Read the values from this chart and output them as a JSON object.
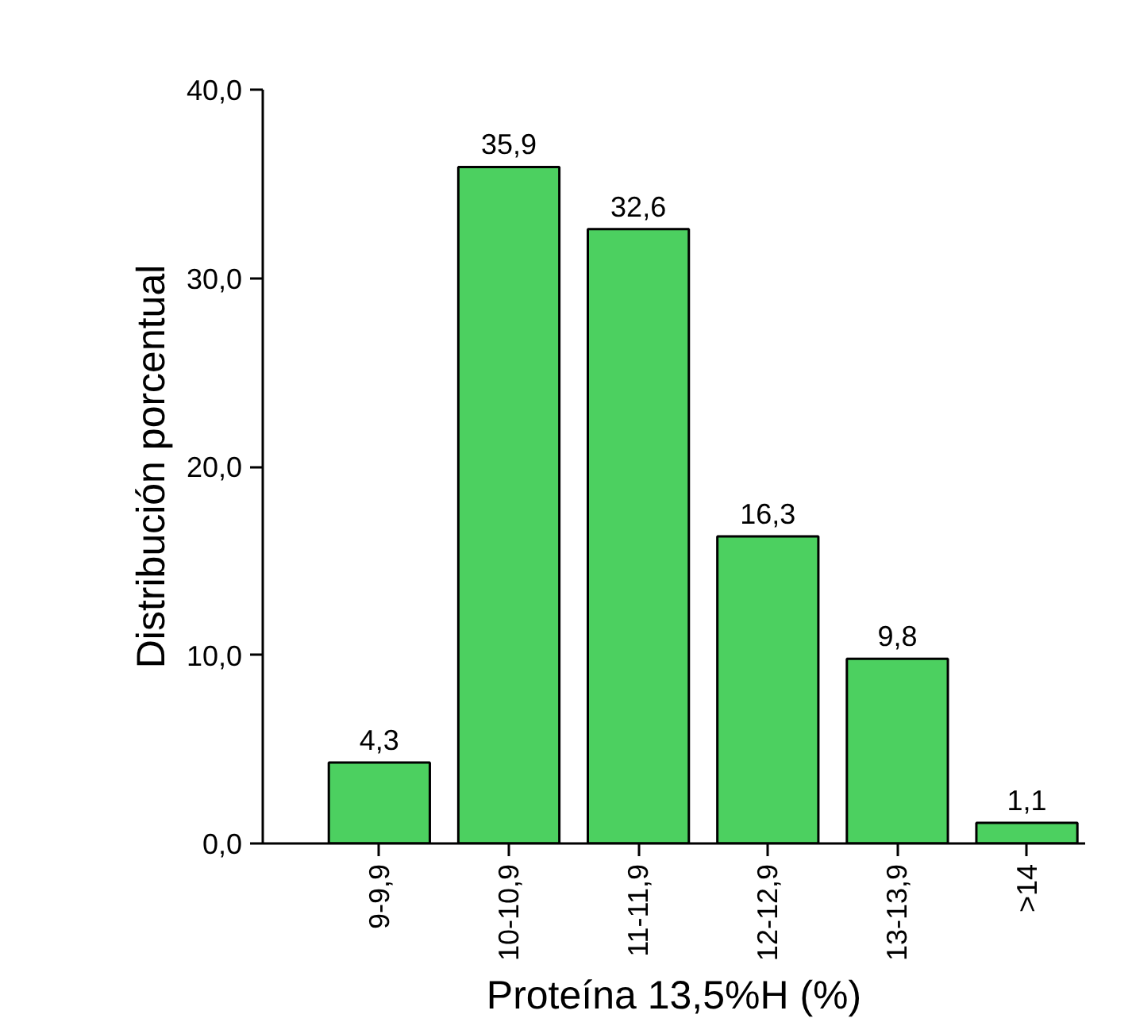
{
  "chart_data": {
    "type": "bar",
    "xlabel": "Proteína 13,5%H (%)",
    "ylabel": "Distribución porcentual",
    "categories": [
      "9-9,9",
      "10-10,9",
      "11-11,9",
      "12-12,9",
      "13-13,9",
      ">14"
    ],
    "values": [
      4.3,
      35.9,
      32.6,
      16.3,
      9.8,
      1.1
    ],
    "value_labels": [
      "4,3",
      "35,9",
      "32,6",
      "16,3",
      "9,8",
      "1,1"
    ],
    "color": "#4cd060",
    "ylim": [
      0,
      40
    ],
    "yticks": [
      {
        "value": 0,
        "label": "0,0"
      },
      {
        "value": 10,
        "label": "10,0"
      },
      {
        "value": 20,
        "label": "20,0"
      },
      {
        "value": 30,
        "label": "30,0"
      },
      {
        "value": 40,
        "label": "40,0"
      }
    ],
    "grid": false
  }
}
